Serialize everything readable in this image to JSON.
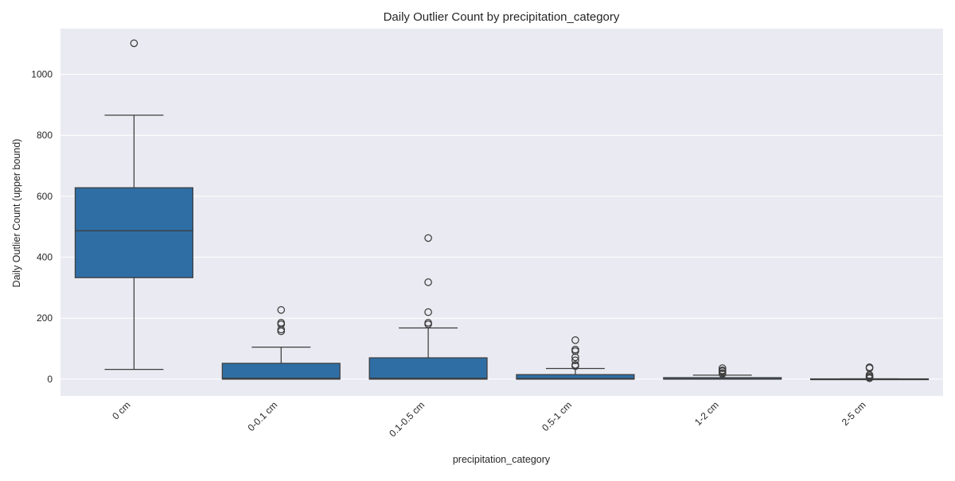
{
  "chart_data": {
    "type": "box",
    "title": "Daily Outlier Count by precipitation_category",
    "xlabel": "precipitation_category",
    "ylabel": "Daily Outlier Count (upper bound)",
    "ylim": [
      -55,
      1150
    ],
    "yticks": [
      0,
      200,
      400,
      600,
      800,
      1000
    ],
    "grid": true,
    "box_color": "#2f6ea4",
    "plot_bg_color": "#eaeaf2",
    "categories": [
      "0 cm",
      "0-0.1 cm",
      "0.1-0.5 cm",
      "0.5-1 cm",
      "1-2 cm",
      "2-5 cm"
    ],
    "boxes": [
      {
        "category": "0 cm",
        "whisker_low": 32,
        "q1": 333,
        "median": 487,
        "q3": 628,
        "whisker_high": 866,
        "outliers": [
          1102
        ]
      },
      {
        "category": "0-0.1 cm",
        "whisker_low": 0,
        "q1": 0,
        "median": 3,
        "q3": 52,
        "whisker_high": 105,
        "outliers": [
          157,
          163,
          180,
          185,
          227
        ]
      },
      {
        "category": "0.1-0.5 cm",
        "whisker_low": 0,
        "q1": 0,
        "median": 3,
        "q3": 70,
        "whisker_high": 168,
        "outliers": [
          180,
          185,
          220,
          318,
          463
        ]
      },
      {
        "category": "0.5-1 cm",
        "whisker_low": 0,
        "q1": 0,
        "median": 2,
        "q3": 15,
        "whisker_high": 35,
        "outliers": [
          43,
          47,
          62,
          72,
          92,
          97,
          128
        ]
      },
      {
        "category": "1-2 cm",
        "whisker_low": 0,
        "q1": 0,
        "median": 1,
        "q3": 5,
        "whisker_high": 13,
        "outliers": [
          17,
          20,
          26,
          29,
          36
        ]
      },
      {
        "category": "2-5 cm",
        "whisker_low": 0,
        "q1": 0,
        "median": 0,
        "q3": 1,
        "whisker_high": 1,
        "outliers": [
          3,
          6,
          10,
          14,
          36,
          39
        ]
      }
    ]
  }
}
